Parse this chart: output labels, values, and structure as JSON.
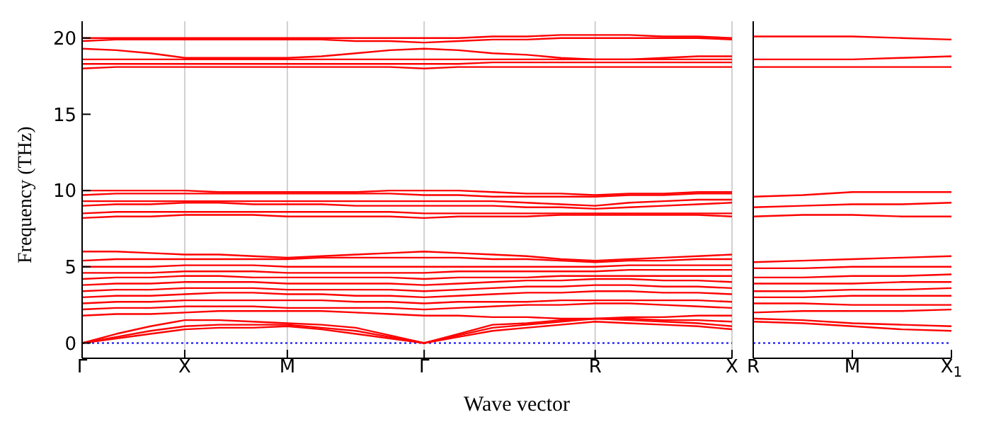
{
  "chart_data": [
    {
      "type": "line",
      "ylabel": "Frequency (THz)",
      "xlabel": "Wave vector",
      "categories": [
        "Γ",
        null,
        null,
        "X",
        null,
        null,
        "M",
        null,
        null,
        null,
        "Γ",
        null,
        null,
        null,
        null,
        "R",
        null,
        null,
        null,
        "X"
      ],
      "ylim": [
        -1,
        21.1
      ],
      "yticks": [
        0,
        5,
        10,
        15,
        20
      ],
      "grid": "x",
      "marker": "none",
      "line_style": "solid",
      "ref_lines": [
        {
          "axis": "y",
          "value": 0,
          "color": "#0000ff",
          "line_style": "dotted"
        }
      ],
      "series": [
        {
          "color": "#ff0000",
          "values": [
            0,
            0.3,
            0.6,
            0.9,
            1.0,
            1.0,
            1.1,
            0.9,
            0.6,
            0.3,
            0,
            0.4,
            0.8,
            1.0,
            1.2,
            1.4,
            1.3,
            1.2,
            1.1,
            0.9
          ]
        },
        {
          "color": "#ff0000",
          "values": [
            0,
            0.4,
            0.8,
            1.1,
            1.2,
            1.2,
            1.2,
            1.0,
            0.8,
            0.4,
            0,
            0.5,
            1.0,
            1.2,
            1.4,
            1.6,
            1.5,
            1.4,
            1.3,
            1.1
          ]
        },
        {
          "color": "#ff0000",
          "values": [
            0,
            0.6,
            1.1,
            1.5,
            1.5,
            1.4,
            1.3,
            1.2,
            1.0,
            0.5,
            0,
            0.6,
            1.2,
            1.3,
            1.5,
            1.6,
            1.6,
            1.5,
            1.5,
            1.4
          ]
        },
        {
          "color": "#ff0000",
          "values": [
            1.8,
            1.9,
            1.9,
            2.0,
            2.1,
            2.1,
            2.1,
            2.1,
            2.0,
            1.9,
            1.8,
            1.8,
            1.7,
            1.7,
            1.6,
            1.6,
            1.7,
            1.7,
            1.8,
            1.8
          ]
        },
        {
          "color": "#ff0000",
          "values": [
            2.2,
            2.3,
            2.3,
            2.4,
            2.4,
            2.4,
            2.3,
            2.3,
            2.3,
            2.3,
            2.2,
            2.3,
            2.4,
            2.5,
            2.5,
            2.6,
            2.6,
            2.5,
            2.4,
            2.3
          ]
        },
        {
          "color": "#ff0000",
          "values": [
            2.6,
            2.7,
            2.7,
            2.8,
            2.8,
            2.8,
            2.8,
            2.8,
            2.7,
            2.7,
            2.6,
            2.7,
            2.7,
            2.7,
            2.8,
            2.8,
            2.8,
            2.8,
            2.8,
            2.7
          ]
        },
        {
          "color": "#ff0000",
          "values": [
            3.0,
            3.1,
            3.1,
            3.2,
            3.3,
            3.3,
            3.2,
            3.2,
            3.1,
            3.1,
            3.0,
            3.1,
            3.2,
            3.3,
            3.3,
            3.4,
            3.4,
            3.3,
            3.3,
            3.2
          ]
        },
        {
          "color": "#ff0000",
          "values": [
            3.4,
            3.5,
            3.5,
            3.6,
            3.6,
            3.6,
            3.5,
            3.5,
            3.5,
            3.5,
            3.4,
            3.5,
            3.6,
            3.7,
            3.7,
            3.8,
            3.8,
            3.7,
            3.7,
            3.6
          ]
        },
        {
          "color": "#ff0000",
          "values": [
            3.8,
            3.9,
            3.9,
            4.0,
            4.0,
            4.0,
            3.9,
            3.9,
            3.9,
            3.9,
            3.8,
            3.9,
            4.0,
            4.1,
            4.1,
            4.2,
            4.2,
            4.1,
            4.1,
            4.0
          ]
        },
        {
          "color": "#ff0000",
          "values": [
            4.2,
            4.3,
            4.3,
            4.4,
            4.4,
            4.3,
            4.3,
            4.3,
            4.3,
            4.3,
            4.2,
            4.3,
            4.3,
            4.3,
            4.4,
            4.4,
            4.4,
            4.4,
            4.4,
            4.4
          ]
        },
        {
          "color": "#ff0000",
          "values": [
            4.6,
            4.6,
            4.6,
            4.7,
            4.7,
            4.7,
            4.6,
            4.6,
            4.6,
            4.6,
            4.6,
            4.7,
            4.7,
            4.7,
            4.7,
            4.7,
            4.8,
            4.8,
            4.8,
            4.8
          ]
        },
        {
          "color": "#ff0000",
          "values": [
            5.0,
            5.0,
            5.0,
            5.1,
            5.1,
            5.1,
            5.0,
            5.0,
            5.0,
            5.0,
            5.0,
            5.0,
            5.0,
            5.0,
            5.0,
            5.0,
            5.1,
            5.1,
            5.1,
            5.1
          ]
        },
        {
          "color": "#ff0000",
          "values": [
            5.4,
            5.5,
            5.5,
            5.5,
            5.5,
            5.5,
            5.5,
            5.6,
            5.6,
            5.6,
            5.6,
            5.6,
            5.5,
            5.5,
            5.4,
            5.3,
            5.4,
            5.4,
            5.5,
            5.5
          ]
        },
        {
          "color": "#ff0000",
          "values": [
            6.0,
            6.0,
            5.9,
            5.8,
            5.8,
            5.7,
            5.6,
            5.7,
            5.8,
            5.9,
            6.0,
            5.9,
            5.8,
            5.7,
            5.5,
            5.4,
            5.5,
            5.6,
            5.7,
            5.8
          ]
        },
        {
          "color": "#ff0000",
          "values": [
            8.2,
            8.3,
            8.3,
            8.4,
            8.4,
            8.4,
            8.3,
            8.3,
            8.3,
            8.3,
            8.2,
            8.3,
            8.3,
            8.3,
            8.4,
            8.4,
            8.4,
            8.4,
            8.4,
            8.3
          ]
        },
        {
          "color": "#ff0000",
          "values": [
            8.5,
            8.6,
            8.6,
            8.6,
            8.6,
            8.6,
            8.6,
            8.6,
            8.6,
            8.6,
            8.5,
            8.5,
            8.5,
            8.5,
            8.5,
            8.5,
            8.5,
            8.5,
            8.5,
            8.5
          ]
        },
        {
          "color": "#ff0000",
          "values": [
            9.0,
            9.1,
            9.1,
            9.2,
            9.2,
            9.1,
            9.1,
            9.1,
            9.0,
            9.0,
            9.0,
            9.0,
            9.0,
            8.9,
            8.9,
            8.8,
            8.9,
            9.0,
            9.1,
            9.2
          ]
        },
        {
          "color": "#ff0000",
          "values": [
            9.3,
            9.3,
            9.3,
            9.3,
            9.3,
            9.3,
            9.3,
            9.3,
            9.3,
            9.3,
            9.3,
            9.3,
            9.3,
            9.2,
            9.1,
            9.0,
            9.2,
            9.3,
            9.4,
            9.4
          ]
        },
        {
          "color": "#ff0000",
          "values": [
            9.7,
            9.8,
            9.8,
            9.8,
            9.8,
            9.8,
            9.8,
            9.8,
            9.8,
            9.8,
            9.7,
            9.7,
            9.6,
            9.6,
            9.6,
            9.6,
            9.7,
            9.7,
            9.8,
            9.8
          ]
        },
        {
          "color": "#ff0000",
          "values": [
            10.0,
            10.0,
            10.0,
            10.0,
            9.9,
            9.9,
            9.9,
            9.9,
            9.9,
            10.0,
            10.0,
            10.0,
            9.9,
            9.8,
            9.8,
            9.7,
            9.8,
            9.8,
            9.9,
            9.9
          ]
        },
        {
          "color": "#ff0000",
          "values": [
            18.0,
            18.1,
            18.1,
            18.1,
            18.1,
            18.1,
            18.1,
            18.1,
            18.1,
            18.1,
            18.0,
            18.1,
            18.1,
            18.1,
            18.1,
            18.1,
            18.1,
            18.1,
            18.1,
            18.1
          ]
        },
        {
          "color": "#ff0000",
          "values": [
            18.3,
            18.3,
            18.3,
            18.3,
            18.3,
            18.3,
            18.3,
            18.3,
            18.3,
            18.3,
            18.3,
            18.3,
            18.4,
            18.4,
            18.4,
            18.4,
            18.4,
            18.4,
            18.4,
            18.4
          ]
        },
        {
          "color": "#ff0000",
          "values": [
            18.6,
            18.6,
            18.6,
            18.6,
            18.6,
            18.6,
            18.6,
            18.6,
            18.6,
            18.6,
            18.6,
            18.6,
            18.6,
            18.6,
            18.6,
            18.6,
            18.6,
            18.6,
            18.6,
            18.6
          ]
        },
        {
          "color": "#ff0000",
          "values": [
            19.3,
            19.2,
            19.0,
            18.7,
            18.7,
            18.7,
            18.7,
            18.8,
            19.0,
            19.2,
            19.3,
            19.2,
            19.0,
            18.9,
            18.7,
            18.6,
            18.6,
            18.7,
            18.8,
            18.8
          ]
        },
        {
          "color": "#ff0000",
          "values": [
            19.8,
            19.9,
            19.9,
            19.9,
            19.9,
            19.9,
            19.9,
            19.9,
            19.8,
            19.8,
            19.7,
            19.8,
            19.9,
            19.9,
            20.0,
            20.0,
            20.0,
            20.0,
            20.0,
            19.9
          ]
        },
        {
          "color": "#ff0000",
          "values": [
            20.0,
            20.0,
            20.0,
            20.0,
            20.0,
            20.0,
            20.0,
            20.0,
            20.0,
            20.0,
            20.0,
            20.0,
            20.1,
            20.1,
            20.2,
            20.2,
            20.2,
            20.1,
            20.1,
            20.0
          ]
        }
      ]
    },
    {
      "type": "line",
      "categories": [
        "R",
        null,
        "M",
        null,
        "X$_{1}$"
      ],
      "ylim": [
        -1,
        21.1
      ],
      "yticks": [
        0,
        5,
        10,
        15,
        20
      ],
      "marker": "none",
      "line_style": "solid",
      "tick_labels": "x",
      "ref_lines": [
        {
          "axis": "y",
          "value": 0,
          "color": "#0000ff",
          "line_style": "dotted"
        }
      ],
      "series": [
        {
          "color": "#ff0000",
          "values": [
            1.4,
            1.3,
            1.1,
            0.9,
            0.8
          ]
        },
        {
          "color": "#ff0000",
          "values": [
            1.6,
            1.5,
            1.3,
            1.2,
            1.1
          ]
        },
        {
          "color": "#ff0000",
          "values": [
            2.0,
            2.1,
            2.1,
            2.1,
            2.2
          ]
        },
        {
          "color": "#ff0000",
          "values": [
            2.6,
            2.6,
            2.5,
            2.5,
            2.5
          ]
        },
        {
          "color": "#ff0000",
          "values": [
            3.0,
            3.0,
            3.1,
            3.1,
            3.1
          ]
        },
        {
          "color": "#ff0000",
          "values": [
            3.4,
            3.4,
            3.5,
            3.5,
            3.6
          ]
        },
        {
          "color": "#ff0000",
          "values": [
            3.9,
            3.9,
            3.9,
            4.0,
            4.0
          ]
        },
        {
          "color": "#ff0000",
          "values": [
            4.3,
            4.3,
            4.4,
            4.4,
            4.5
          ]
        },
        {
          "color": "#ff0000",
          "values": [
            4.9,
            4.9,
            5.0,
            5.0,
            5.0
          ]
        },
        {
          "color": "#ff0000",
          "values": [
            5.3,
            5.4,
            5.5,
            5.6,
            5.7
          ]
        },
        {
          "color": "#ff0000",
          "values": [
            8.3,
            8.4,
            8.4,
            8.3,
            8.3
          ]
        },
        {
          "color": "#ff0000",
          "values": [
            8.9,
            9.0,
            9.1,
            9.1,
            9.2
          ]
        },
        {
          "color": "#ff0000",
          "values": [
            9.6,
            9.7,
            9.9,
            9.9,
            9.9
          ]
        },
        {
          "color": "#ff0000",
          "values": [
            18.1,
            18.1,
            18.1,
            18.1,
            18.1
          ]
        },
        {
          "color": "#ff0000",
          "values": [
            18.6,
            18.6,
            18.6,
            18.7,
            18.8
          ]
        },
        {
          "color": "#ff0000",
          "values": [
            20.1,
            20.1,
            20.1,
            20.0,
            19.9
          ]
        }
      ]
    }
  ]
}
